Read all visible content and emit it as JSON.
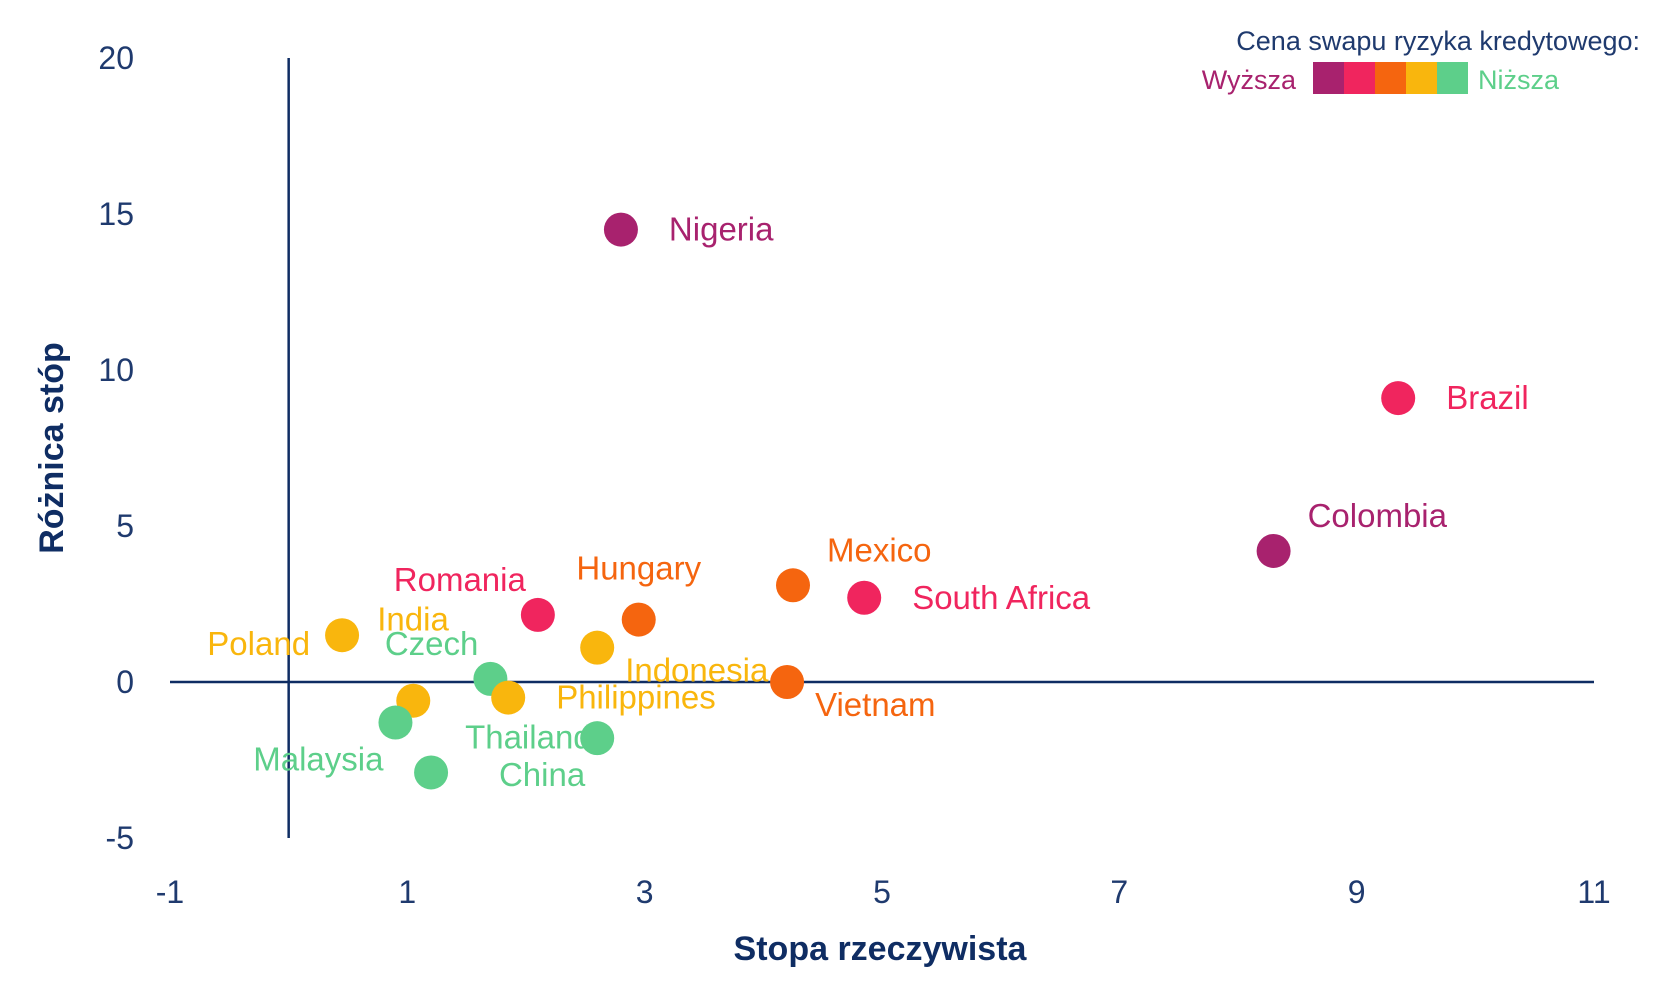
{
  "chart_data": {
    "type": "scatter",
    "xlabel": "Stopa rzeczywista",
    "ylabel": "Różnica stóp",
    "xlim": [
      -1,
      11
    ],
    "ylim": [
      -5,
      20
    ],
    "xticks": [
      -1,
      1,
      3,
      5,
      7,
      9,
      11
    ],
    "yticks": [
      -5,
      0,
      5,
      10,
      15,
      20
    ],
    "grid": false,
    "legend": {
      "position": "top-right",
      "title": "Cena swapu ryzyka kredytowego:",
      "high_label": "Wyższa",
      "low_label": "Niższa",
      "scale_colors": [
        "#a8226e",
        "#f0255e",
        "#f5650f",
        "#f9b60d",
        "#5dcf8a"
      ]
    },
    "points": [
      {
        "name": "Nigeria",
        "x": 2.8,
        "y": 14.5,
        "color": "#a8226e",
        "label_pos": "right"
      },
      {
        "name": "Brazil",
        "x": 9.35,
        "y": 9.1,
        "color": "#f0255e",
        "label_pos": "right"
      },
      {
        "name": "Colombia",
        "x": 8.3,
        "y": 4.2,
        "color": "#a8226e",
        "label_pos": "above-right"
      },
      {
        "name": "Mexico",
        "x": 4.25,
        "y": 3.1,
        "color": "#f5650f",
        "label_pos": "above-right"
      },
      {
        "name": "South Africa",
        "x": 4.85,
        "y": 2.7,
        "color": "#f0255e",
        "label_pos": "right"
      },
      {
        "name": "Hungary",
        "x": 2.95,
        "y": 2.0,
        "color": "#f5650f",
        "label_pos": "above"
      },
      {
        "name": "Romania",
        "x": 2.1,
        "y": 2.15,
        "color": "#f0255e",
        "label_pos": "above-left"
      },
      {
        "name": "Indonesia",
        "x": 2.6,
        "y": 1.1,
        "color": "#f9b60d",
        "label_pos": "below-right"
      },
      {
        "name": "India",
        "x": 1.05,
        "y": -0.6,
        "color": "#f9b60d",
        "label_pos": "far-above"
      },
      {
        "name": "Poland",
        "x": 0.45,
        "y": 1.5,
        "color": "#f9b60d",
        "label_pos": "left"
      },
      {
        "name": "Czech",
        "x": 1.7,
        "y": 0.1,
        "color": "#5dcf8a",
        "label_pos": "above-left"
      },
      {
        "name": "Philippines",
        "x": 1.85,
        "y": -0.5,
        "color": "#f9b60d",
        "label_pos": "right"
      },
      {
        "name": "Vietnam",
        "x": 4.2,
        "y": 0.0,
        "color": "#f5650f",
        "label_pos": "below-right"
      },
      {
        "name": "Malaysia",
        "x": 0.9,
        "y": -1.3,
        "color": "#5dcf8a",
        "label_pos": "below-left"
      },
      {
        "name": "Thailand",
        "x": 1.2,
        "y": -2.9,
        "color": "#5dcf8a",
        "label_pos": "above-right"
      },
      {
        "name": "China",
        "x": 2.6,
        "y": -1.8,
        "color": "#5dcf8a",
        "label_pos": "below-left"
      }
    ]
  },
  "colors": {
    "axis": "#0f2d63",
    "tick_text": "#1f3a6e"
  }
}
